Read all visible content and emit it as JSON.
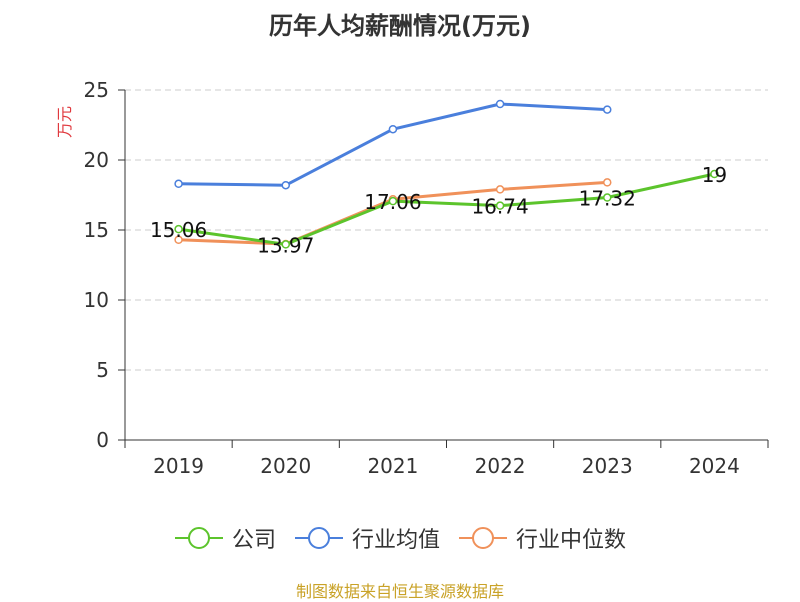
{
  "chart_data": {
    "type": "line",
    "title": "历年人均薪酬情况(万元)",
    "ylabel": "万元",
    "xlabel": "",
    "categories": [
      "2019",
      "2020",
      "2021",
      "2022",
      "2023",
      "2024"
    ],
    "ylim": [
      0,
      25
    ],
    "yticks": [
      0,
      5,
      10,
      15,
      20,
      25
    ],
    "grid": true,
    "legend_position": "bottom",
    "series": [
      {
        "name": "公司",
        "color": "#5cc42c",
        "values": [
          15.06,
          13.97,
          17.06,
          16.74,
          17.32,
          19
        ],
        "labels": [
          "15.06",
          "13.97",
          "17.06",
          "16.74",
          "17.32",
          "19"
        ]
      },
      {
        "name": "行业均值",
        "color": "#4a7fdc",
        "values": [
          18.3,
          18.2,
          22.2,
          24.0,
          23.6,
          null
        ],
        "labels": null
      },
      {
        "name": "行业中位数",
        "color": "#f0915a",
        "values": [
          14.3,
          14.0,
          17.2,
          17.9,
          18.4,
          null
        ],
        "labels": null
      }
    ]
  },
  "source": "制图数据来自恒生聚源数据库"
}
